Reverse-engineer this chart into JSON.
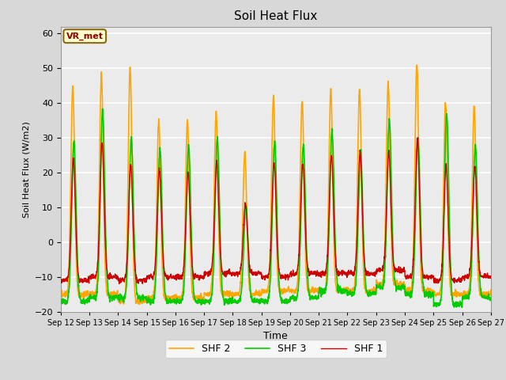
{
  "title": "Soil Heat Flux",
  "xlabel": "Time",
  "ylabel": "Soil Heat Flux (W/m2)",
  "ylim": [
    -20,
    62
  ],
  "yticks": [
    -20,
    -10,
    0,
    10,
    20,
    30,
    40,
    50,
    60
  ],
  "line_colors": {
    "SHF 1": "#cc0000",
    "SHF 2": "#ffa500",
    "SHF 3": "#00cc00"
  },
  "line_widths": {
    "SHF 1": 1.0,
    "SHF 2": 1.2,
    "SHF 3": 1.2
  },
  "annotation_text": "VR_met",
  "bg_color": "#d8d8d8",
  "plot_bg_color": "#ebebeb",
  "xtick_labels": [
    "Sep 12",
    "Sep 13",
    "Sep 14",
    "Sep 15",
    "Sep 16",
    "Sep 17",
    "Sep 18",
    "Sep 19",
    "Sep 20",
    "Sep 21",
    "Sep 22",
    "Sep 23",
    "Sep 24",
    "Sep 25",
    "Sep 26",
    "Sep 27"
  ],
  "days": 15,
  "pts_per_day": 144,
  "shf2_peaks": [
    45,
    48,
    50,
    35,
    35,
    37,
    26,
    42,
    41,
    44,
    44,
    46,
    51,
    40,
    39
  ],
  "shf3_peaks": [
    29,
    38,
    30,
    27,
    28,
    30,
    10,
    29,
    28,
    32,
    26,
    35,
    30,
    37,
    28
  ],
  "shf1_peaks": [
    24,
    29,
    22,
    21,
    20,
    23,
    11,
    23,
    23,
    25,
    26,
    26,
    30,
    22,
    22
  ],
  "shf2_nights": [
    -15,
    -15,
    -17,
    -16,
    -16,
    -15,
    -15,
    -14,
    -14,
    -14,
    -14,
    -12,
    -14,
    -15,
    -15
  ],
  "shf3_nights": [
    -17,
    -16,
    -16,
    -17,
    -17,
    -17,
    -17,
    -17,
    -16,
    -14,
    -15,
    -13,
    -15,
    -18,
    -16
  ],
  "shf1_nights": [
    -11,
    -10,
    -11,
    -10,
    -10,
    -9,
    -9,
    -10,
    -9,
    -9,
    -9,
    -8,
    -10,
    -11,
    -10
  ]
}
